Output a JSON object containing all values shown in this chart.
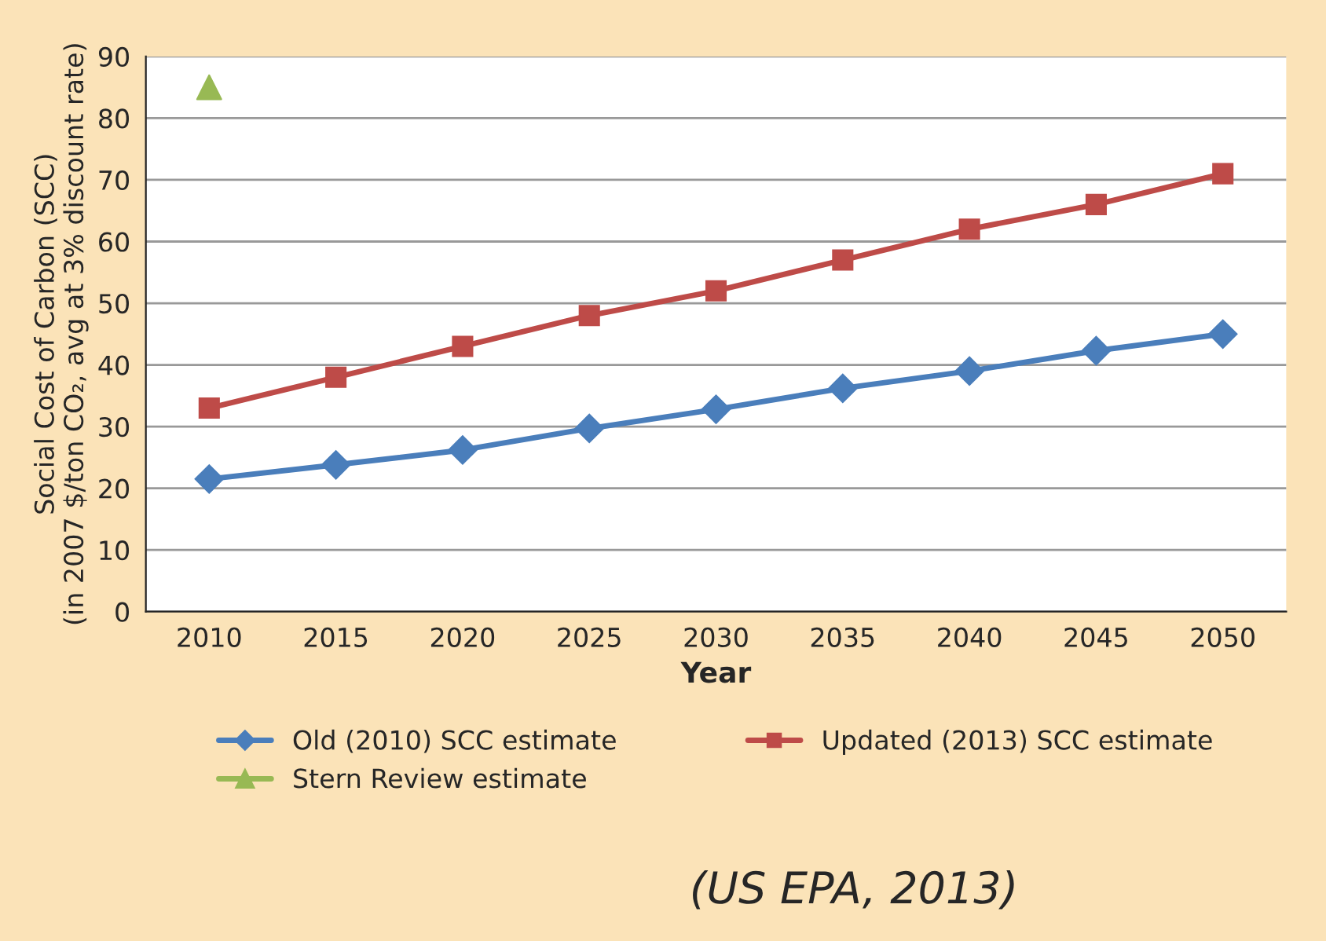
{
  "chart_data": {
    "type": "line",
    "xlabel": "Year",
    "ylabel": "Social Cost of Carbon (SCC)\n(in 2007 $/ton CO₂, avg at 3% discount rate)",
    "categories": [
      "2010",
      "2015",
      "2020",
      "2025",
      "2030",
      "2035",
      "2040",
      "2045",
      "2050"
    ],
    "series": [
      {
        "name": "Old (2010) SCC estimate",
        "color": "#4a7ebb",
        "marker": "diamond",
        "values": [
          21.5,
          23.8,
          26.2,
          29.7,
          32.8,
          36.2,
          39,
          42.3,
          45
        ]
      },
      {
        "name": "Updated (2013) SCC estimate",
        "color": "#be4b48",
        "marker": "square",
        "values": [
          33,
          38,
          43,
          48,
          52,
          57,
          62,
          66,
          71
        ]
      },
      {
        "name": "Stern Review estimate",
        "type": "scatter",
        "color": "#98b954",
        "marker": "triangle",
        "values": [
          85,
          null,
          null,
          null,
          null,
          null,
          null,
          null,
          null
        ]
      }
    ],
    "ylim": [
      0,
      90
    ],
    "yticks": [
      0,
      10,
      20,
      30,
      40,
      50,
      60,
      70,
      80,
      90
    ],
    "grid": "y",
    "legend": "bottom",
    "annotations": [
      "(US EPA, 2013)"
    ]
  }
}
